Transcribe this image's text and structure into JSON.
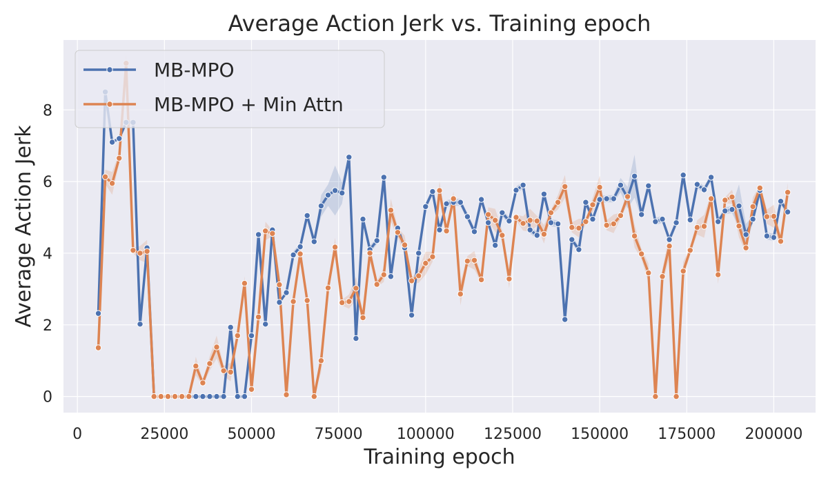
{
  "chart_data": {
    "type": "line",
    "title": "Average Action Jerk vs. Training epoch",
    "xlabel": "Training epoch",
    "ylabel": "Average Action Jerk",
    "xlim": [
      -4000,
      212000
    ],
    "ylim": [
      -0.45,
      9.95
    ],
    "xticks": [
      0,
      25000,
      50000,
      75000,
      100000,
      125000,
      150000,
      175000,
      200000
    ],
    "xtick_labels": [
      "0",
      "25000",
      "50000",
      "75000",
      "100000",
      "125000",
      "150000",
      "175000",
      "200000"
    ],
    "yticks": [
      0,
      2,
      4,
      6,
      8
    ],
    "ytick_labels": [
      "0",
      "2",
      "4",
      "6",
      "8"
    ],
    "grid": true,
    "legend_position": "top-left",
    "series": [
      {
        "name": "MB-MPO",
        "color": "#4c72b0",
        "x": [
          6000,
          8000,
          10000,
          12000,
          14000,
          16000,
          18000,
          20000,
          22000,
          24000,
          26000,
          28000,
          30000,
          32000,
          34000,
          36000,
          38000,
          40000,
          42000,
          44000,
          46000,
          48000,
          50000,
          52000,
          54000,
          56000,
          58000,
          60000,
          62000,
          64000,
          66000,
          68000,
          70000,
          72000,
          74000,
          76000,
          78000,
          80000,
          82000,
          84000,
          86000,
          88000,
          90000,
          92000,
          94000,
          96000,
          98000,
          100000,
          102000,
          104000,
          106000,
          108000,
          110000,
          112000,
          114000,
          116000,
          118000,
          120000,
          122000,
          124000,
          126000,
          128000,
          130000,
          132000,
          134000,
          136000,
          138000,
          140000,
          142000,
          144000,
          146000,
          148000,
          150000,
          152000,
          154000,
          156000,
          158000,
          160000,
          162000,
          164000,
          166000,
          168000,
          170000,
          172000,
          174000,
          176000,
          178000,
          180000,
          182000,
          184000,
          186000,
          188000,
          190000,
          192000,
          194000,
          196000,
          198000,
          200000,
          202000,
          204000
        ],
        "y": [
          2.32,
          8.5,
          7.1,
          7.2,
          7.65,
          7.65,
          2.02,
          4.15,
          0.0,
          0.0,
          0.0,
          0.0,
          0.0,
          0.0,
          0.0,
          0.0,
          0.0,
          0.0,
          0.0,
          1.93,
          0.0,
          0.0,
          1.7,
          4.52,
          2.02,
          4.65,
          2.63,
          2.9,
          3.95,
          4.18,
          5.05,
          4.32,
          5.32,
          5.62,
          5.75,
          5.68,
          6.68,
          1.62,
          4.95,
          4.1,
          4.35,
          6.12,
          3.35,
          4.7,
          4.15,
          2.27,
          4.0,
          5.3,
          5.72,
          4.65,
          5.38,
          5.42,
          5.42,
          5.02,
          4.6,
          5.5,
          4.85,
          4.22,
          5.13,
          4.9,
          5.76,
          5.9,
          4.65,
          4.5,
          5.65,
          4.85,
          4.82,
          2.15,
          4.38,
          4.1,
          5.42,
          4.95,
          5.5,
          5.52,
          5.52,
          5.9,
          5.55,
          6.15,
          5.08,
          5.88,
          4.88,
          4.95,
          4.38,
          4.85,
          6.18,
          4.93,
          5.92,
          5.77,
          6.12,
          4.88,
          5.18,
          5.22,
          5.32,
          4.52,
          4.95,
          5.75,
          4.48,
          4.44,
          5.45,
          5.15
        ],
        "band_halfwidth": [
          0.05,
          0.1,
          0.05,
          0.05,
          0.05,
          0.05,
          0.05,
          0.05,
          0.0,
          0.0,
          0.0,
          0.0,
          0.0,
          0.0,
          0.0,
          0.0,
          0.0,
          0.0,
          0.0,
          0.05,
          0.0,
          0.0,
          0.05,
          0.1,
          0.05,
          0.1,
          0.05,
          0.05,
          0.1,
          0.1,
          0.1,
          0.1,
          0.3,
          0.3,
          0.7,
          0.3,
          0.1,
          0.05,
          0.1,
          0.1,
          0.1,
          0.1,
          0.1,
          0.1,
          0.1,
          0.05,
          0.1,
          0.1,
          0.1,
          0.1,
          0.1,
          0.1,
          0.1,
          0.1,
          0.1,
          0.1,
          0.1,
          0.1,
          0.1,
          0.1,
          0.1,
          0.1,
          0.1,
          0.1,
          0.1,
          0.1,
          0.1,
          0.05,
          0.1,
          0.1,
          0.1,
          0.1,
          0.1,
          0.1,
          0.1,
          0.2,
          0.3,
          0.6,
          0.1,
          0.1,
          0.1,
          0.1,
          0.1,
          0.1,
          0.1,
          0.1,
          0.1,
          0.1,
          0.1,
          0.1,
          0.1,
          0.1,
          0.6,
          0.3,
          0.1,
          0.1,
          0.1,
          0.1,
          0.1,
          0.1
        ]
      },
      {
        "name": "MB-MPO + Min Attn",
        "color": "#dd8452",
        "x": [
          6000,
          8000,
          10000,
          12000,
          14000,
          16000,
          18000,
          20000,
          22000,
          24000,
          26000,
          28000,
          30000,
          32000,
          34000,
          36000,
          38000,
          40000,
          42000,
          44000,
          46000,
          48000,
          50000,
          52000,
          54000,
          56000,
          58000,
          60000,
          62000,
          64000,
          66000,
          68000,
          70000,
          72000,
          74000,
          76000,
          78000,
          80000,
          82000,
          84000,
          86000,
          88000,
          90000,
          92000,
          94000,
          96000,
          98000,
          100000,
          102000,
          104000,
          106000,
          108000,
          110000,
          112000,
          114000,
          116000,
          118000,
          120000,
          122000,
          124000,
          126000,
          128000,
          130000,
          132000,
          134000,
          136000,
          138000,
          140000,
          142000,
          144000,
          146000,
          148000,
          150000,
          152000,
          154000,
          156000,
          158000,
          160000,
          162000,
          164000,
          166000,
          168000,
          170000,
          172000,
          174000,
          176000,
          178000,
          180000,
          182000,
          184000,
          186000,
          188000,
          190000,
          192000,
          194000,
          196000,
          198000,
          200000,
          202000,
          204000
        ],
        "y": [
          1.36,
          6.13,
          5.95,
          6.65,
          9.3,
          4.08,
          4.0,
          4.05,
          0.0,
          0.0,
          0.0,
          0.0,
          0.0,
          0.0,
          0.85,
          0.38,
          0.92,
          1.38,
          0.72,
          0.68,
          1.7,
          3.16,
          0.2,
          2.22,
          4.62,
          4.55,
          3.12,
          0.05,
          2.65,
          3.98,
          2.68,
          0.0,
          1.0,
          3.03,
          4.17,
          2.62,
          2.65,
          3.02,
          2.2,
          4.0,
          3.13,
          3.4,
          5.2,
          4.58,
          4.23,
          3.23,
          3.37,
          3.72,
          3.9,
          5.75,
          4.62,
          5.52,
          2.86,
          3.78,
          3.8,
          3.26,
          5.08,
          4.92,
          4.5,
          3.28,
          5.0,
          4.83,
          4.92,
          4.9,
          4.53,
          5.13,
          5.42,
          5.86,
          4.72,
          4.7,
          4.88,
          5.35,
          5.84,
          4.78,
          4.82,
          5.05,
          5.58,
          4.48,
          3.98,
          3.45,
          0.0,
          3.35,
          4.2,
          0.0,
          3.5,
          4.08,
          4.72,
          4.75,
          5.52,
          3.4,
          5.48,
          5.57,
          4.76,
          4.15,
          5.3,
          5.82,
          5.02,
          5.03,
          4.33,
          5.7
        ]
      }
    ]
  }
}
